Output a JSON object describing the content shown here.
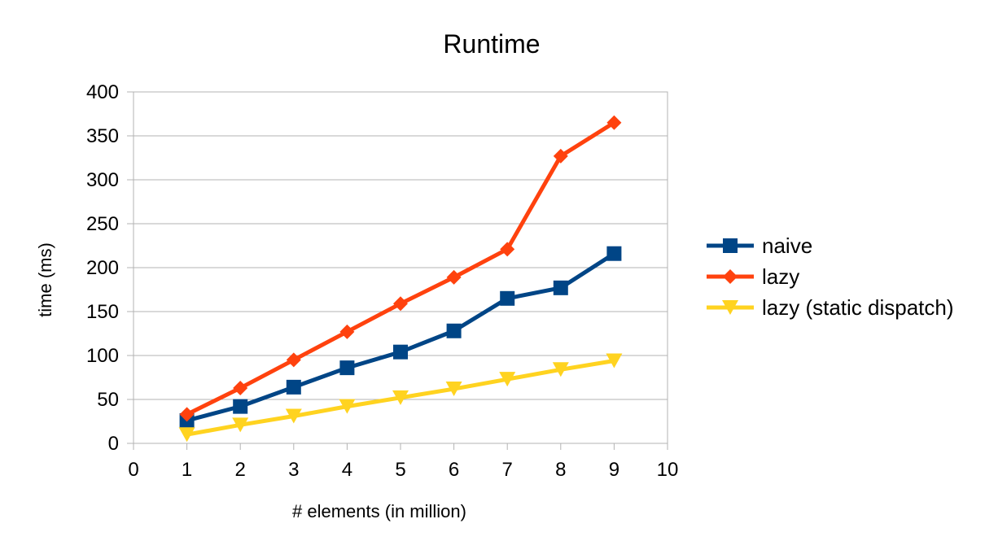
{
  "chart_data": {
    "type": "line",
    "title": "Runtime",
    "xlabel": "# elements (in million)",
    "ylabel": "time (ms)",
    "xlim": [
      0,
      10
    ],
    "ylim": [
      0,
      400
    ],
    "x_ticks": [
      0,
      1,
      2,
      3,
      4,
      5,
      6,
      7,
      8,
      9,
      10
    ],
    "y_ticks": [
      0,
      50,
      100,
      150,
      200,
      250,
      300,
      350,
      400
    ],
    "grid": true,
    "legend_position": "right",
    "x": [
      1,
      2,
      3,
      4,
      5,
      6,
      7,
      8,
      9
    ],
    "series": [
      {
        "name": "naive",
        "color": "#004586",
        "marker": "square",
        "values": [
          26,
          42,
          64,
          86,
          104,
          128,
          165,
          177,
          216
        ]
      },
      {
        "name": "lazy",
        "color": "#ff420e",
        "marker": "diamond",
        "values": [
          33,
          63,
          95,
          127,
          159,
          189,
          221,
          327,
          365
        ]
      },
      {
        "name": "lazy (static dispatch)",
        "color": "#ffd320",
        "marker": "triangle-down",
        "values": [
          10,
          21,
          31,
          42,
          52,
          62,
          73,
          84,
          94
        ]
      }
    ]
  }
}
